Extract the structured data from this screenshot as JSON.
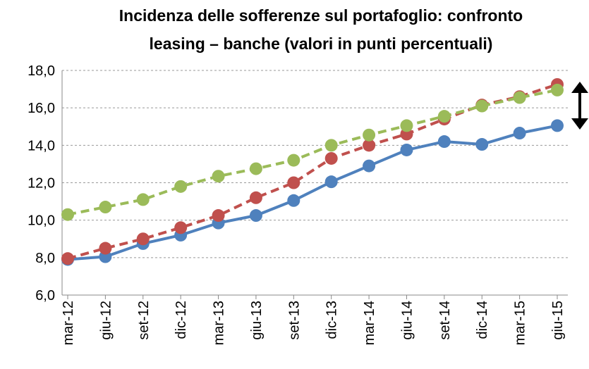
{
  "chart_data": {
    "type": "line",
    "title": [
      "Incidenza delle sofferenze sul portafoglio: confronto",
      "leasing – banche (valori in punti percentuali)"
    ],
    "categories": [
      "mar-12",
      "giu-12",
      "set-12",
      "dic-12",
      "mar-13",
      "giu-13",
      "set-13",
      "dic-13",
      "mar-14",
      "giu-14",
      "set-14",
      "dic-14",
      "mar-15",
      "giu-15"
    ],
    "series": [
      {
        "color": "#4f81bd",
        "dashed": false,
        "values": [
          7.9,
          8.05,
          8.75,
          9.2,
          9.85,
          10.25,
          11.05,
          12.05,
          12.9,
          13.75,
          14.2,
          14.05,
          14.65,
          15.05
        ]
      },
      {
        "color": "#c0504d",
        "dashed": true,
        "values": [
          7.95,
          8.5,
          9.0,
          9.6,
          10.25,
          11.2,
          12.0,
          13.3,
          14.0,
          14.6,
          15.4,
          16.15,
          16.6,
          17.25
        ]
      },
      {
        "color": "#9bbb59",
        "dashed": true,
        "values": [
          10.3,
          10.7,
          11.1,
          11.8,
          12.35,
          12.75,
          13.2,
          14.0,
          14.55,
          15.05,
          15.55,
          16.1,
          16.55,
          16.95
        ]
      }
    ],
    "ylim": [
      6,
      18
    ],
    "yticks": [
      {
        "value": 6,
        "label": "6,0"
      },
      {
        "value": 8,
        "label": "8,0"
      },
      {
        "value": 10,
        "label": "10,0"
      },
      {
        "value": 12,
        "label": "12,0"
      },
      {
        "value": 14,
        "label": "14,0"
      },
      {
        "value": 16,
        "label": "16,0"
      },
      {
        "value": 18,
        "label": "18,0"
      }
    ],
    "grid": true
  }
}
